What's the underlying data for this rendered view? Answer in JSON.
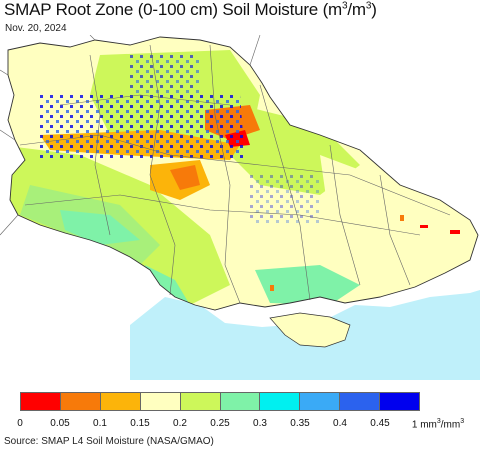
{
  "title": {
    "prefix": "SMAP Root Zone (0-100 cm) Soil Moisture (m",
    "mid": ")",
    "tail": "/m",
    "end": ")",
    "sup": "3"
  },
  "date": "Nov. 20, 2024",
  "legend": {
    "colors": [
      "#ff0000",
      "#f77a0a",
      "#fcb40a",
      "#ffffc0",
      "#cdf75a",
      "#7ff2a8",
      "#00f0f0",
      "#3aaaf6",
      "#2b62ee",
      "#0000ee"
    ],
    "ticks": [
      "0",
      "0.05",
      "0.1",
      "0.15",
      "0.2",
      "0.25",
      "0.3",
      "0.35",
      "0.4",
      "0.45"
    ],
    "last_tick_prefix": "1 mm",
    "last_tick_mid": "/mm",
    "last_tick_sup": "3"
  },
  "source": "Source: SMAP L4 Soil Moisture (NASA/GMAO)",
  "map_colors": {
    "sea": "#bff0fa",
    "outside": "#ffffff",
    "border": "#333333",
    "oblast_line": "#666666"
  }
}
